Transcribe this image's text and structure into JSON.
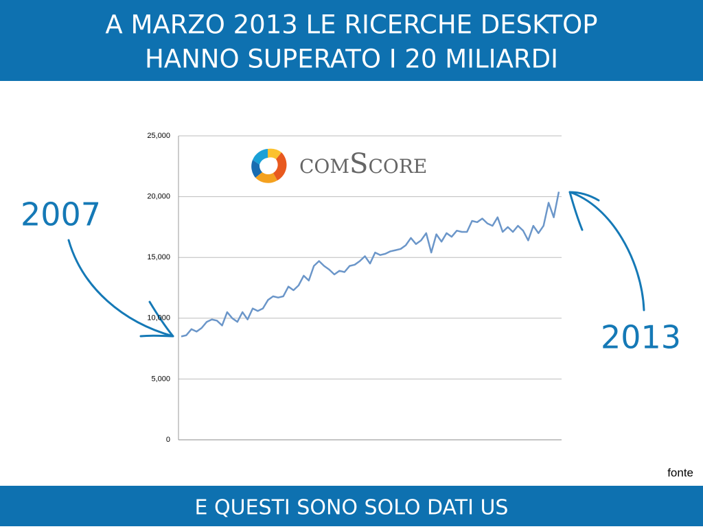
{
  "header": {
    "line1": "A MARZO 2013 LE RICERCHE DESKTOP",
    "line2": "HANNO SUPERATO I 20 MILIARDI"
  },
  "footer": "E QUESTI SONO SOLO DATI US",
  "annotations": {
    "start": "2007",
    "end": "2013",
    "source": "fonte",
    "logo": "comScore"
  },
  "chart_data": {
    "type": "line",
    "color": "#6b96c9",
    "grid": true,
    "values": [
      8500,
      8600,
      9100,
      8900,
      9200,
      9700,
      9900,
      9800,
      9400,
      10500,
      10000,
      9700,
      10500,
      9900,
      10800,
      10600,
      10800,
      11500,
      11800,
      11700,
      11800,
      12600,
      12300,
      12700,
      13500,
      13100,
      14300,
      14700,
      14300,
      14000,
      13600,
      13900,
      13800,
      14300,
      14400,
      14700,
      15100,
      14500,
      15400,
      15200,
      15300,
      15500,
      15600,
      15700,
      16000,
      16600,
      16100,
      16400,
      17000,
      15400,
      16900,
      16300,
      17000,
      16700,
      17200,
      17100,
      17100,
      18000,
      17900,
      18200,
      17800,
      17600,
      18300,
      17100,
      17500,
      17100,
      17600,
      17200,
      16400,
      17600,
      17000,
      17600,
      19500,
      18300,
      20400
    ],
    "ylim": [
      0,
      25000
    ],
    "yticks": [
      0,
      {
        "value": 5000,
        "label": "5,000"
      },
      {
        "value": 10000,
        "label": "10,000"
      },
      {
        "value": 15000,
        "label": "15,000"
      },
      {
        "value": 20000,
        "label": "20,000"
      },
      {
        "value": 25000,
        "label": "25,000"
      }
    ]
  }
}
